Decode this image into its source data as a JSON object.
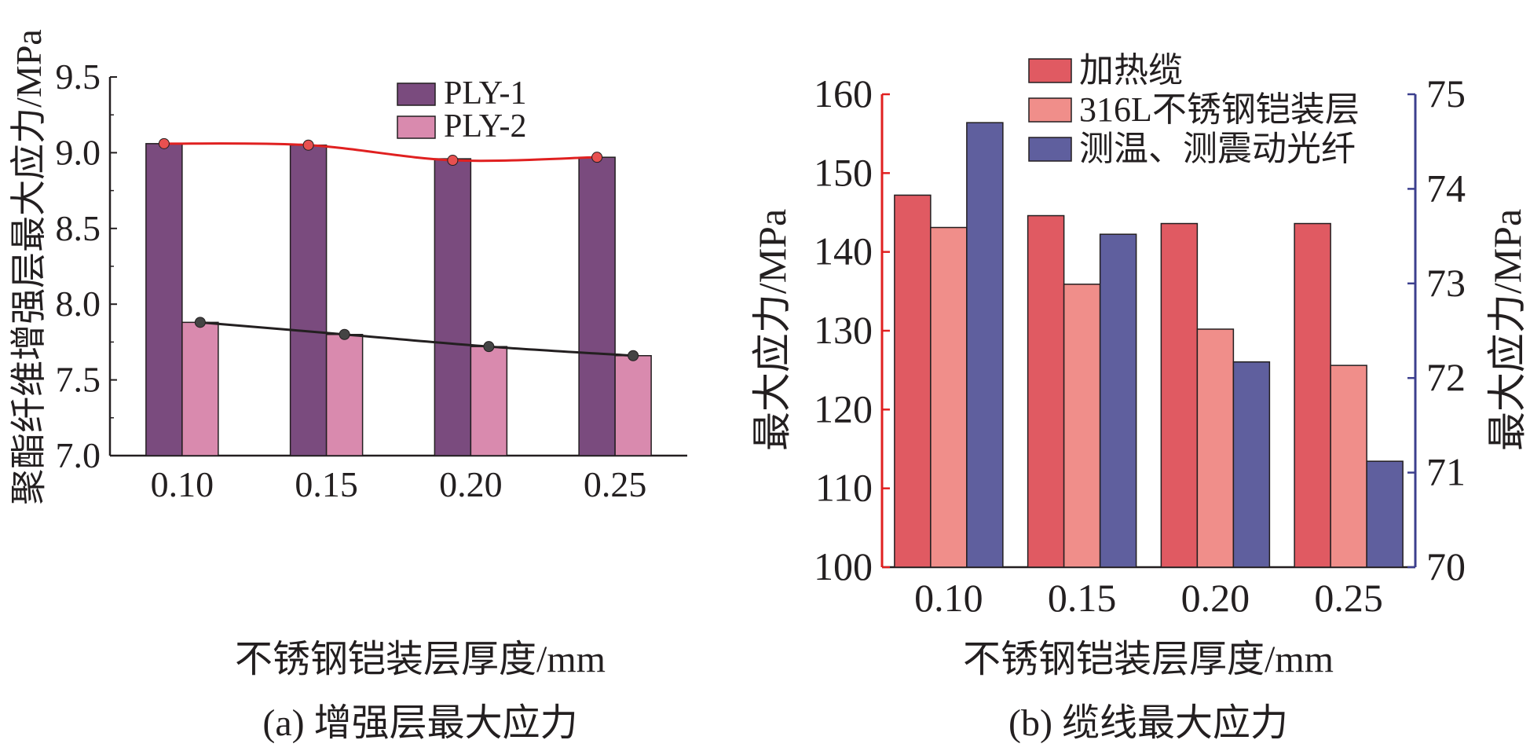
{
  "chart_data": [
    {
      "type": "bar",
      "title": "",
      "caption": "(a) 增强层最大应力",
      "xlabel": "不锈钢铠装层厚度/mm",
      "ylabel": "聚酯纤维增强层最大应力/MPa",
      "categories": [
        "0.10",
        "0.15",
        "0.20",
        "0.25"
      ],
      "ylim": [
        7.0,
        9.5
      ],
      "yticks": [
        "7.0",
        "7.5",
        "8.0",
        "8.5",
        "9.0",
        "9.5"
      ],
      "legend_position": "top-right",
      "series": [
        {
          "name": "PLY-1",
          "values": [
            9.06,
            9.05,
            8.96,
            8.97
          ],
          "color": "#7a4b7e"
        },
        {
          "name": "PLY-2",
          "values": [
            7.88,
            7.8,
            7.72,
            7.66
          ],
          "color": "#d98aae"
        }
      ],
      "trend_lines": [
        {
          "values": [
            9.06,
            9.05,
            8.95,
            8.97
          ],
          "color": "#e02020",
          "marker": "#e85050"
        },
        {
          "values": [
            7.88,
            7.8,
            7.72,
            7.66
          ],
          "color": "#231f20",
          "marker": "#444444"
        }
      ]
    },
    {
      "type": "bar",
      "title": "",
      "caption": "(b) 缆线最大应力",
      "xlabel": "不锈钢铠装层厚度/mm",
      "ylabel": "最大应力/MPa",
      "ylabel_right": "最大应力/MPa",
      "categories": [
        "0.10",
        "0.15",
        "0.20",
        "0.25"
      ],
      "ylim": [
        100,
        160
      ],
      "ylim_right": [
        70,
        75
      ],
      "yticks": [
        "100",
        "110",
        "120",
        "130",
        "140",
        "150",
        "160"
      ],
      "yticks_right": [
        "70",
        "71",
        "72",
        "73",
        "74",
        "75"
      ],
      "left_axis_color": "#e02020",
      "right_axis_color": "#3c3f8e",
      "legend_position": "top-right",
      "series": [
        {
          "name": "加热缆",
          "values": [
            147.2,
            144.6,
            143.6,
            143.6
          ],
          "color": "#e05a62",
          "axis": "left"
        },
        {
          "name": "316L不锈钢铠装层",
          "values": [
            143.1,
            135.9,
            130.2,
            125.6
          ],
          "color": "#f08e8a",
          "axis": "left"
        },
        {
          "name": "测温、测震动光纤",
          "values": [
            74.7,
            73.52,
            72.17,
            71.12
          ],
          "color": "#5f5f9e",
          "axis": "right"
        }
      ]
    }
  ]
}
